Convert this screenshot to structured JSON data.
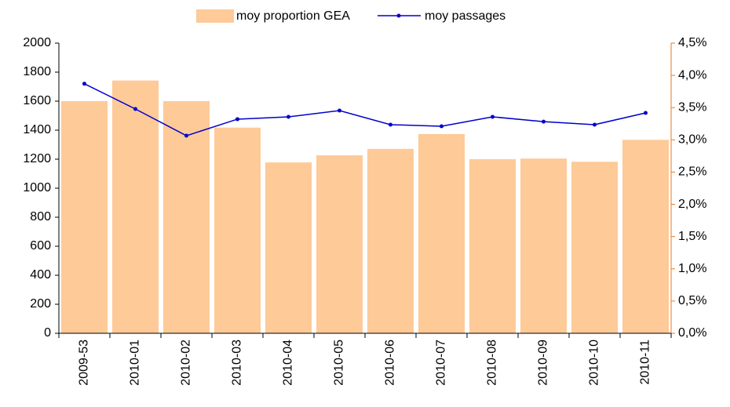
{
  "chart_data": {
    "type": "bar_line",
    "categories": [
      "2009-53",
      "2010-01",
      "2010-02",
      "2010-03",
      "2010-04",
      "2010-05",
      "2010-06",
      "2010-07",
      "2010-08",
      "2010-09",
      "2010-10",
      "2010-11"
    ],
    "series": [
      {
        "name": "moy proportion GEA",
        "type": "bar",
        "axis": "y2",
        "color": "#fdca98",
        "values": [
          3.6,
          3.92,
          3.6,
          3.19,
          2.65,
          2.76,
          2.86,
          3.09,
          2.7,
          2.71,
          2.66,
          3.0
        ]
      },
      {
        "name": "moy passages",
        "type": "line",
        "axis": "y",
        "color": "#0000cc",
        "values": [
          1720,
          1546,
          1362,
          1476,
          1492,
          1535,
          1438,
          1427,
          1492,
          1459,
          1438,
          1519
        ]
      }
    ],
    "ylim": [
      0,
      2000
    ],
    "yticks": [
      0,
      200,
      400,
      600,
      800,
      1000,
      1200,
      1400,
      1600,
      1800,
      2000
    ],
    "y2lim": [
      0,
      4.5
    ],
    "y2ticks": [
      {
        "value": 0,
        "label": "0,0%"
      },
      {
        "value": 0.5,
        "label": "0,5%"
      },
      {
        "value": 1,
        "label": "1,0%"
      },
      {
        "value": 1.5,
        "label": "1,5%"
      },
      {
        "value": 2,
        "label": "2,0%"
      },
      {
        "value": 2.5,
        "label": "2,5%"
      },
      {
        "value": 3,
        "label": "3,0%"
      },
      {
        "value": 3.5,
        "label": "3,5%"
      },
      {
        "value": 4,
        "label": "4,0%"
      },
      {
        "value": 4.5,
        "label": "4,5%"
      }
    ],
    "y2_axis_color": "#e8791e",
    "y_axis_color": "#000000",
    "legend": "top",
    "grid": false
  }
}
